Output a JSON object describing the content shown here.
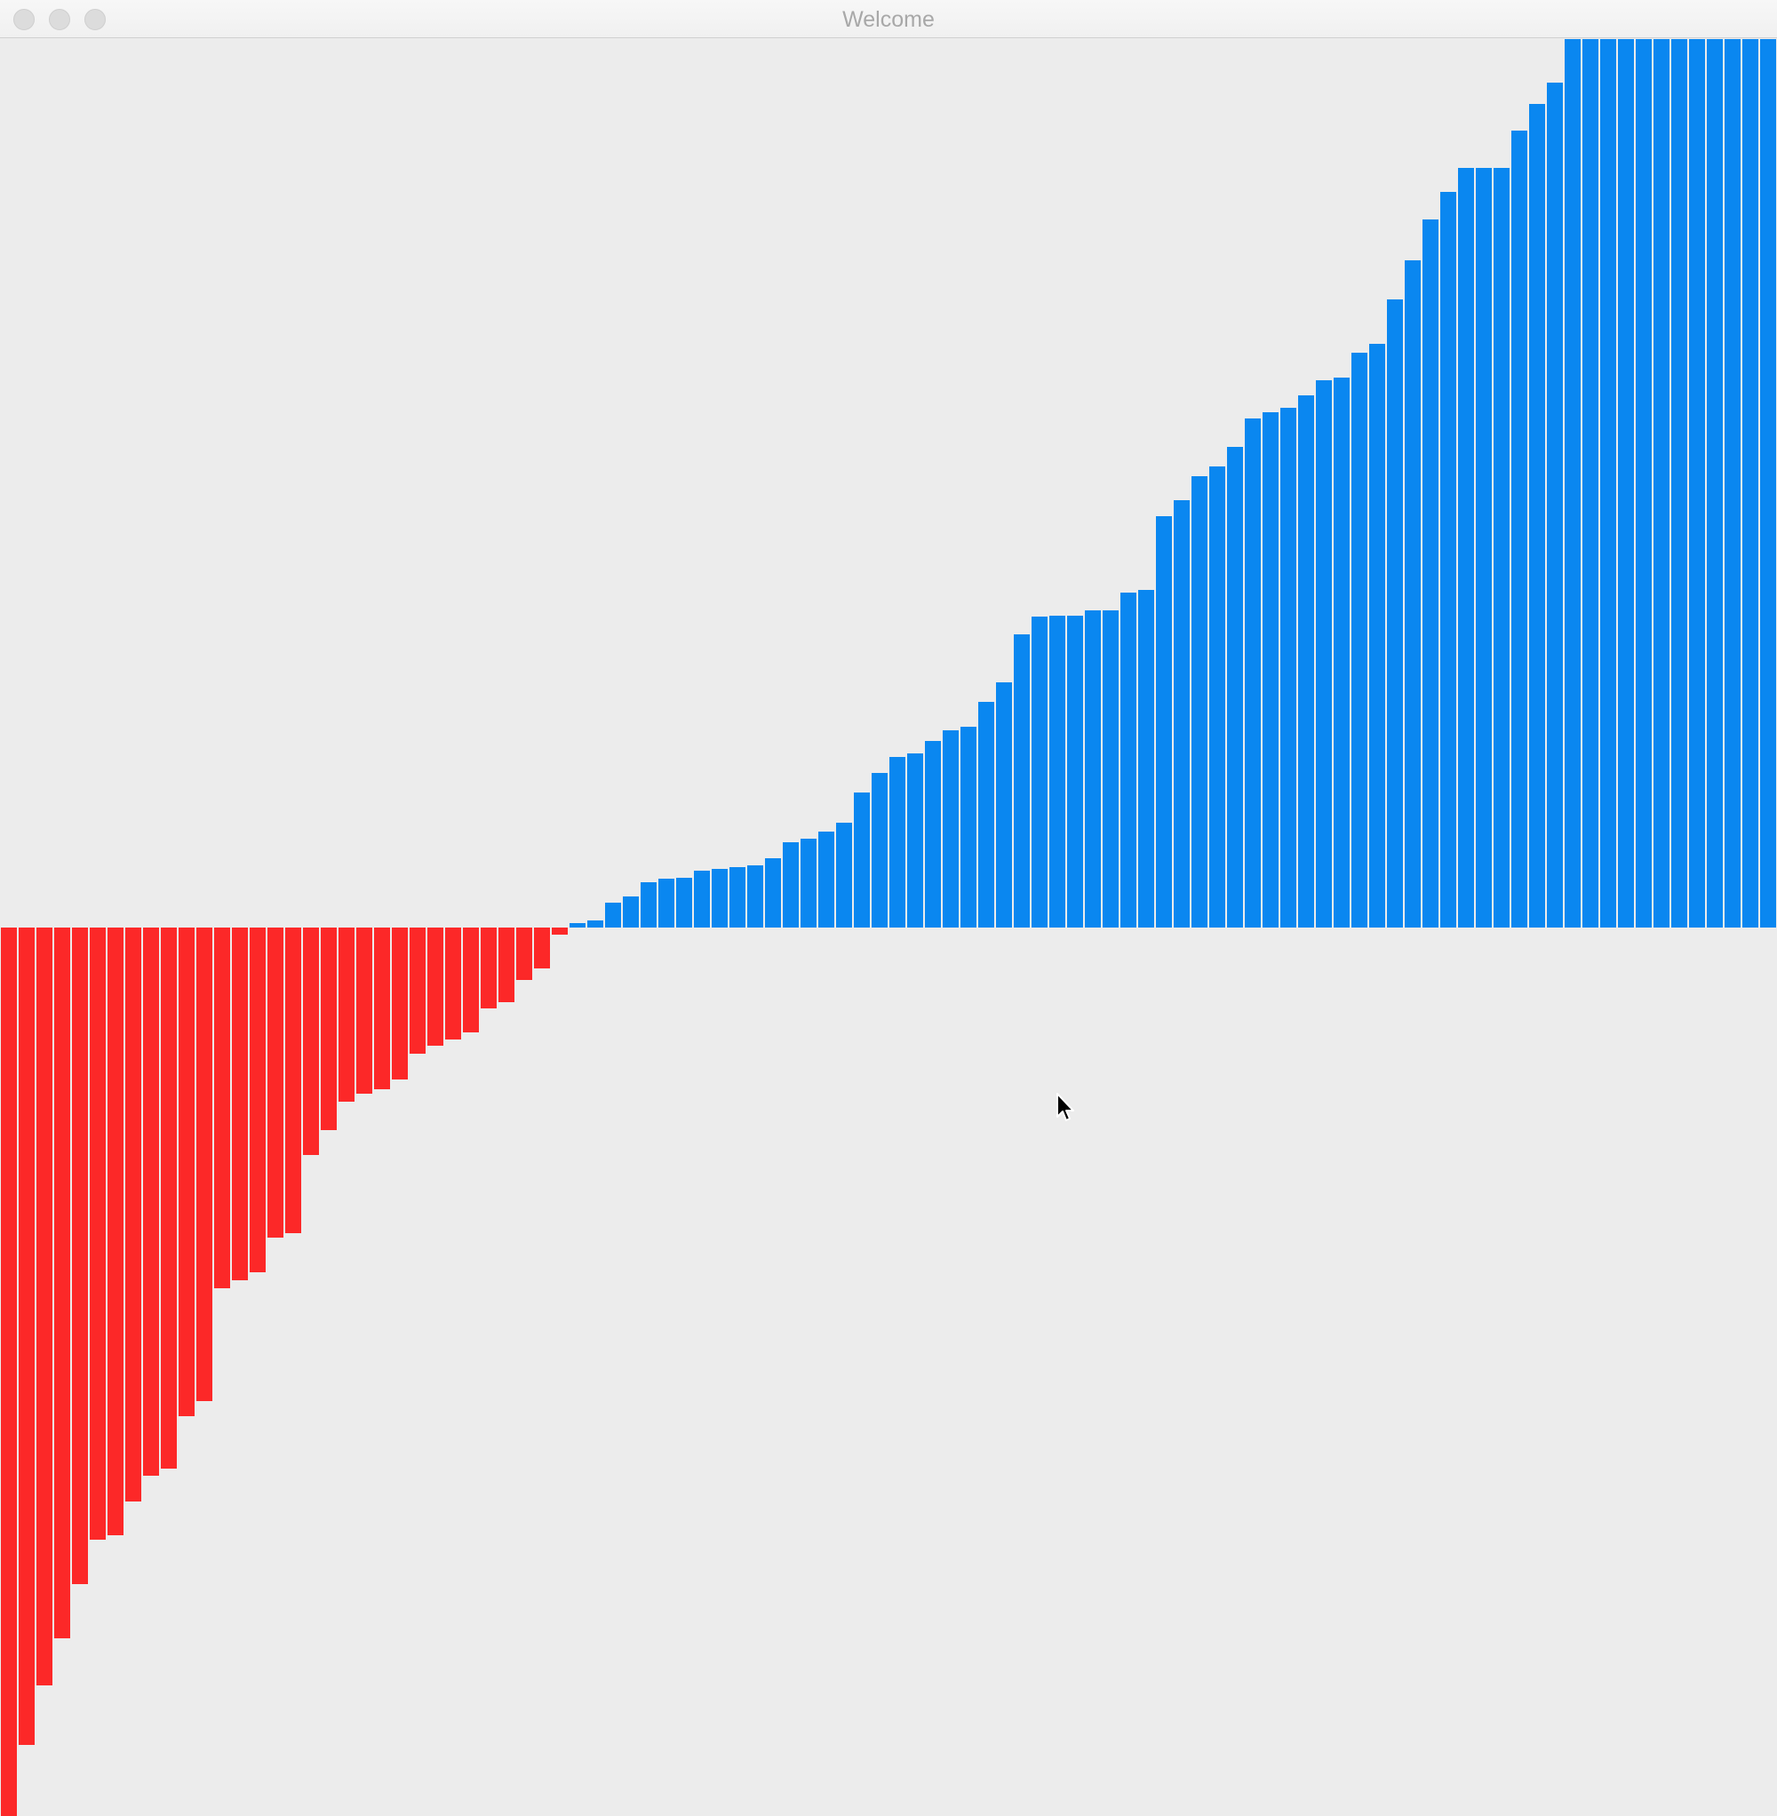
{
  "window": {
    "title": "Welcome"
  },
  "colors": {
    "negative": "#fc2828",
    "positive": "#0a87f0",
    "background": "#ececec"
  },
  "chart_data": {
    "type": "bar",
    "ylim": [
      -1.0,
      1.0
    ],
    "grid": false,
    "values": [
      -1.0,
      -0.92,
      -0.853,
      -0.8,
      -0.739,
      -0.689,
      -0.684,
      -0.646,
      -0.617,
      -0.609,
      -0.55,
      -0.533,
      -0.406,
      -0.397,
      -0.388,
      -0.349,
      -0.344,
      -0.256,
      -0.228,
      -0.196,
      -0.187,
      -0.182,
      -0.171,
      -0.142,
      -0.133,
      -0.126,
      -0.118,
      -0.091,
      -0.084,
      -0.059,
      -0.046,
      -0.008,
      0.005,
      0.008,
      0.028,
      0.035,
      0.051,
      0.055,
      0.056,
      0.064,
      0.066,
      0.068,
      0.07,
      0.078,
      0.096,
      0.1,
      0.108,
      0.118,
      0.152,
      0.174,
      0.192,
      0.196,
      0.21,
      0.222,
      0.226,
      0.254,
      0.276,
      0.33,
      0.35,
      0.351,
      0.351,
      0.357,
      0.357,
      0.377,
      0.38,
      0.463,
      0.481,
      0.508,
      0.519,
      0.541,
      0.573,
      0.58,
      0.585,
      0.599,
      0.616,
      0.619,
      0.647,
      0.657,
      0.707,
      0.751,
      0.797,
      0.828,
      0.855,
      0.855,
      0.855,
      0.897,
      0.927,
      0.951,
      1.0,
      1.0,
      1.0,
      1.0,
      1.0,
      1.0,
      1.0,
      1.0,
      1.0,
      1.0,
      1.0,
      1.0
    ]
  }
}
